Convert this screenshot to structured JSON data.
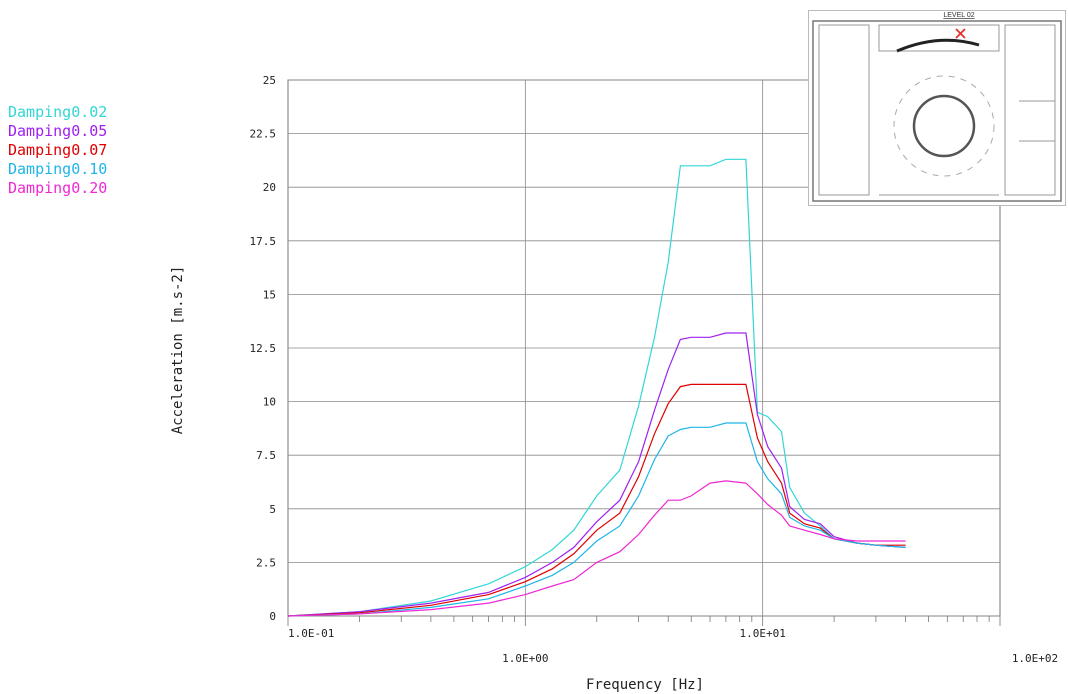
{
  "chart_data": {
    "type": "line",
    "xlabel": "Frequency [Hz]",
    "ylabel": "Acceleration [m.s-2]",
    "xscale": "log",
    "xlim": [
      0.1,
      100
    ],
    "ylim": [
      0,
      25
    ],
    "grid": true,
    "legend_position": "left",
    "yticks": [
      "0",
      "2.5",
      "5",
      "7.5",
      "10",
      "12.5",
      "15",
      "17.5",
      "20",
      "22.5",
      "25"
    ],
    "xticks": [
      "1.0E-01",
      "1.0E+00",
      "1.0E+01",
      "1.0E+02"
    ],
    "series": [
      {
        "name": "Damping0.02",
        "color": "#33d6d6",
        "x": [
          0.1,
          0.2,
          0.4,
          0.7,
          1.0,
          1.3,
          1.6,
          2.0,
          2.5,
          3.0,
          3.5,
          4.0,
          4.5,
          5.0,
          6.0,
          7.0,
          8.5,
          9.5,
          10.5,
          12.0,
          13.0,
          15.0,
          17.5,
          20.0,
          25.0,
          30.0,
          40.0
        ],
        "y": [
          0.0,
          0.2,
          0.7,
          1.5,
          2.3,
          3.1,
          4.0,
          5.6,
          6.8,
          9.8,
          13.0,
          16.5,
          21.0,
          21.0,
          21.0,
          21.3,
          21.3,
          9.5,
          9.3,
          8.6,
          6.0,
          4.8,
          4.2,
          3.6,
          3.4,
          3.3,
          3.2
        ]
      },
      {
        "name": "Damping0.05",
        "color": "#a020f0",
        "x": [
          0.1,
          0.2,
          0.4,
          0.7,
          1.0,
          1.3,
          1.6,
          2.0,
          2.5,
          3.0,
          3.5,
          4.0,
          4.5,
          5.0,
          6.0,
          7.0,
          8.5,
          9.5,
          10.5,
          12.0,
          13.0,
          15.0,
          17.5,
          20.0,
          25.0,
          30.0,
          40.0
        ],
        "y": [
          0.0,
          0.2,
          0.6,
          1.1,
          1.8,
          2.5,
          3.2,
          4.4,
          5.4,
          7.2,
          9.6,
          11.5,
          12.9,
          13.0,
          13.0,
          13.2,
          13.2,
          9.4,
          7.9,
          6.9,
          5.1,
          4.5,
          4.3,
          3.7,
          3.4,
          3.3,
          3.2
        ]
      },
      {
        "name": "Damping0.07",
        "color": "#e00000",
        "x": [
          0.1,
          0.2,
          0.4,
          0.7,
          1.0,
          1.3,
          1.6,
          2.0,
          2.5,
          3.0,
          3.5,
          4.0,
          4.5,
          5.0,
          6.0,
          7.0,
          8.5,
          9.5,
          10.5,
          12.0,
          13.0,
          15.0,
          17.5,
          20.0,
          25.0,
          30.0,
          40.0
        ],
        "y": [
          0.0,
          0.15,
          0.5,
          1.0,
          1.6,
          2.2,
          2.9,
          4.0,
          4.8,
          6.5,
          8.5,
          9.9,
          10.7,
          10.8,
          10.8,
          10.8,
          10.8,
          8.3,
          7.2,
          6.2,
          4.8,
          4.3,
          4.1,
          3.6,
          3.4,
          3.3,
          3.3
        ]
      },
      {
        "name": "Damping0.10",
        "color": "#1fb5e8",
        "x": [
          0.1,
          0.2,
          0.4,
          0.7,
          1.0,
          1.3,
          1.6,
          2.0,
          2.5,
          3.0,
          3.5,
          4.0,
          4.5,
          5.0,
          6.0,
          7.0,
          8.5,
          9.5,
          10.5,
          12.0,
          13.0,
          15.0,
          17.5,
          20.0,
          25.0,
          30.0,
          40.0
        ],
        "y": [
          0.0,
          0.1,
          0.4,
          0.8,
          1.4,
          1.9,
          2.5,
          3.5,
          4.2,
          5.6,
          7.3,
          8.4,
          8.7,
          8.8,
          8.8,
          9.0,
          9.0,
          7.2,
          6.4,
          5.7,
          4.6,
          4.2,
          4.0,
          3.6,
          3.4,
          3.3,
          3.2
        ]
      },
      {
        "name": "Damping0.20",
        "color": "#f028d2",
        "x": [
          0.1,
          0.2,
          0.4,
          0.7,
          1.0,
          1.3,
          1.6,
          2.0,
          2.5,
          3.0,
          3.5,
          4.0,
          4.5,
          5.0,
          6.0,
          7.0,
          8.5,
          9.5,
          10.5,
          12.0,
          13.0,
          15.0,
          17.5,
          20.0,
          25.0,
          30.0,
          40.0
        ],
        "y": [
          0.0,
          0.1,
          0.3,
          0.6,
          1.0,
          1.4,
          1.7,
          2.5,
          3.0,
          3.8,
          4.7,
          5.4,
          5.4,
          5.6,
          6.2,
          6.3,
          6.2,
          5.7,
          5.2,
          4.7,
          4.2,
          4.0,
          3.8,
          3.6,
          3.5,
          3.5,
          3.5
        ]
      }
    ]
  },
  "inset": {
    "title": "LEVEL 02"
  }
}
